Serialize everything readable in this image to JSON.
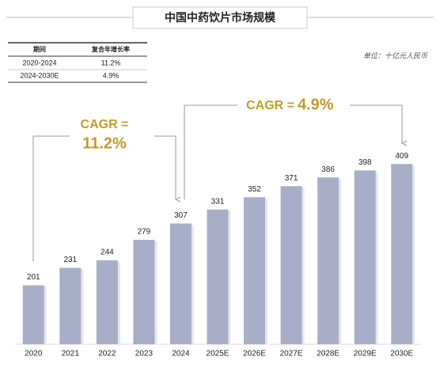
{
  "chart_data": {
    "type": "bar",
    "title": "中国中药饮片市场规模",
    "unit": "单位：十亿元人民币",
    "table": {
      "headers": [
        "期间",
        "复合年增长率"
      ],
      "rows": [
        [
          "2020-2024",
          "11.2%"
        ],
        [
          "2024-2030E",
          "4.9%"
        ]
      ]
    },
    "annotations": [
      {
        "label": "CAGR =",
        "value": "11.2%"
      },
      {
        "label": "CAGR =",
        "value": "4.9%"
      }
    ],
    "categories": [
      "2020",
      "2021",
      "2022",
      "2023",
      "2024",
      "2025E",
      "2026E",
      "2027E",
      "2028E",
      "2029E",
      "2030E"
    ],
    "values": [
      201,
      231,
      244,
      279,
      307,
      331,
      352,
      371,
      386,
      398,
      409
    ],
    "color": "#a9aec8",
    "ylim": [
      100,
      450
    ]
  }
}
